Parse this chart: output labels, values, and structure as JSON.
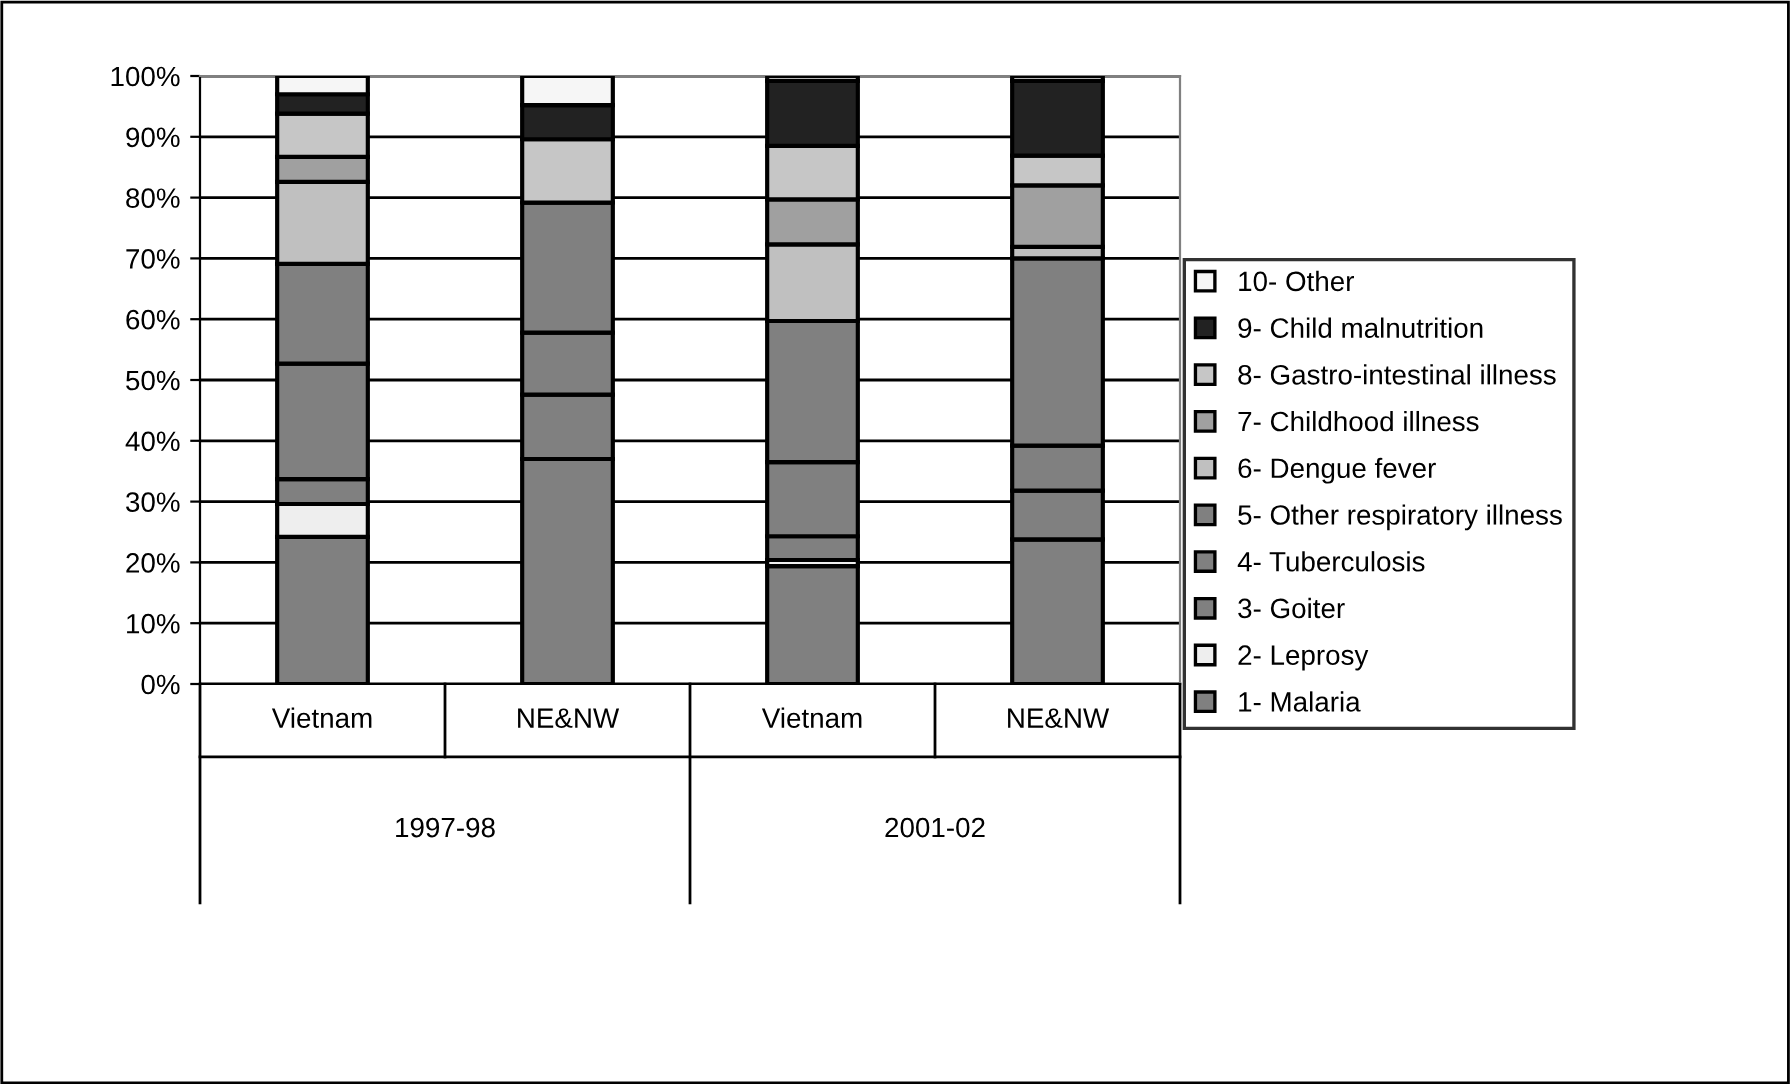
{
  "chart_data": {
    "type": "bar",
    "stacked": true,
    "categories": [
      "Vietnam",
      "NE&NW",
      "Vietnam",
      "NE&NW"
    ],
    "annotations": [
      "1997-98",
      "2001-02"
    ],
    "ylim": [
      0,
      100
    ],
    "yticks": [
      {
        "value": 0,
        "label": "0%"
      },
      {
        "value": 10,
        "label": "10%"
      },
      {
        "value": 20,
        "label": "20%"
      },
      {
        "value": 30,
        "label": "30%"
      },
      {
        "value": 40,
        "label": "40%"
      },
      {
        "value": 50,
        "label": "50%"
      },
      {
        "value": 60,
        "label": "60%"
      },
      {
        "value": 70,
        "label": "70%"
      },
      {
        "value": 80,
        "label": "80%"
      },
      {
        "value": 90,
        "label": "90%"
      },
      {
        "value": 100,
        "label": "100%"
      }
    ],
    "grid": "y",
    "legend": "right",
    "series": [
      {
        "name": "1- Malaria",
        "color": "#808080",
        "values": [
          24.2,
          37,
          19.4,
          23.8
        ]
      },
      {
        "name": "2- Leprosy",
        "color": "#eeeeee",
        "values": [
          5.4,
          0,
          1.0,
          null
        ]
      },
      {
        "name": "3- Goiter",
        "color": "#808080",
        "values": [
          4.1,
          10.6,
          3.9,
          8.0
        ]
      },
      {
        "name": "4- Tuberculosis",
        "color": "#808080",
        "values": [
          19.0,
          10.2,
          12.2,
          7.4
        ]
      },
      {
        "name": "5- Other respiratory illness",
        "color": "#808080",
        "values": [
          16.4,
          21.4,
          23.2,
          30.8
        ]
      },
      {
        "name": "6- Dengue fever",
        "color": "#c0c0c0",
        "values": [
          13.5,
          0,
          12.6,
          1.9
        ]
      },
      {
        "name": "7- Childhood illness",
        "color": "#a0a0a0",
        "values": [
          4.1,
          0,
          7.4,
          10.1
        ]
      },
      {
        "name": "8- Gastro-intestinal illness",
        "color": "#c6c6c6",
        "values": [
          7.1,
          10.4,
          8.8,
          4.9
        ]
      },
      {
        "name": "9- Child malnutrition",
        "color": "#222222",
        "values": [
          3.2,
          5.6,
          10.7,
          12.3
        ]
      },
      {
        "name": "10- Other",
        "color": "#f6f6f6",
        "values": [
          3.0,
          4.8,
          0.8,
          0.8
        ]
      }
    ]
  }
}
